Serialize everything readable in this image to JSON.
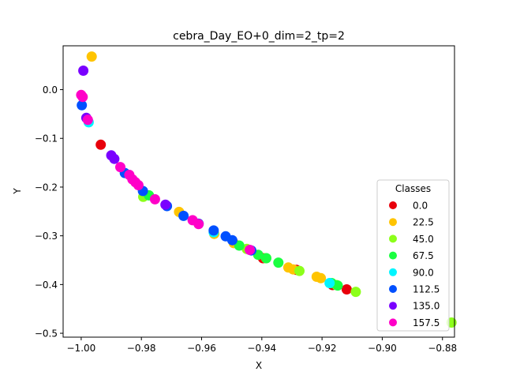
{
  "chart_data": {
    "type": "scatter",
    "title": "cebra_Day_EO+0_dim=2_tp=2",
    "xlabel": "X",
    "ylabel": "Y",
    "xlim": [
      -1.006,
      -0.876
    ],
    "ylim": [
      -0.508,
      0.09
    ],
    "xticks": [
      -1.0,
      -0.98,
      -0.96,
      -0.94,
      -0.92,
      -0.9,
      -0.88
    ],
    "xtick_labels": [
      "−1.00",
      "−0.98",
      "−0.96",
      "−0.94",
      "−0.92",
      "−0.90",
      "−0.88"
    ],
    "yticks": [
      0.0,
      -0.1,
      -0.2,
      -0.3,
      -0.4,
      -0.5
    ],
    "ytick_labels": [
      "0.0",
      "−0.1",
      "−0.2",
      "−0.3",
      "−0.4",
      "−0.5"
    ],
    "grid": false,
    "legend": {
      "title": "Classes",
      "placement": "lower-right"
    },
    "series": [
      {
        "name": "0.0",
        "color": "#e8000b",
        "points": [
          [
            -0.9935,
            -0.113
          ],
          [
            -0.9396,
            -0.346
          ],
          [
            -0.9285,
            -0.37
          ],
          [
            -0.9165,
            -0.401
          ],
          [
            -0.9118,
            -0.41
          ]
        ]
      },
      {
        "name": "22.5",
        "color": "#ffc400",
        "points": [
          [
            -0.9965,
            0.068
          ],
          [
            -0.9675,
            -0.251
          ],
          [
            -0.9558,
            -0.296
          ],
          [
            -0.9493,
            -0.315
          ],
          [
            -0.9312,
            -0.365
          ],
          [
            -0.9296,
            -0.369
          ],
          [
            -0.9218,
            -0.384
          ],
          [
            -0.9204,
            -0.387
          ]
        ]
      },
      {
        "name": "45.0",
        "color": "#8cff1a",
        "points": [
          [
            -0.9794,
            -0.22
          ],
          [
            -0.945,
            -0.327
          ],
          [
            -0.9386,
            -0.346
          ],
          [
            -0.9275,
            -0.372
          ],
          [
            -0.9152,
            -0.401
          ],
          [
            -0.9088,
            -0.415
          ],
          [
            -0.877,
            -0.478
          ]
        ]
      },
      {
        "name": "67.5",
        "color": "#1aff40",
        "points": [
          [
            -0.9775,
            -0.217
          ],
          [
            -0.9475,
            -0.32
          ],
          [
            -0.9412,
            -0.339
          ],
          [
            -0.9385,
            -0.346
          ],
          [
            -0.9345,
            -0.355
          ],
          [
            -0.9168,
            -0.397
          ],
          [
            -0.9148,
            -0.402
          ]
        ]
      },
      {
        "name": "90.0",
        "color": "#00f5ff",
        "points": [
          [
            -0.9975,
            -0.067
          ],
          [
            -0.956,
            -0.293
          ],
          [
            -0.9175,
            -0.397
          ]
        ]
      },
      {
        "name": "112.5",
        "color": "#0050ff",
        "points": [
          [
            -0.9998,
            -0.032
          ],
          [
            -0.9855,
            -0.171
          ],
          [
            -0.9795,
            -0.208
          ],
          [
            -0.9715,
            -0.239
          ],
          [
            -0.966,
            -0.259
          ],
          [
            -0.961,
            -0.275
          ],
          [
            -0.956,
            -0.289
          ],
          [
            -0.952,
            -0.301
          ],
          [
            -0.9498,
            -0.309
          ],
          [
            -0.9435,
            -0.33
          ]
        ]
      },
      {
        "name": "135.0",
        "color": "#7a00ff",
        "points": [
          [
            -0.9993,
            0.039
          ],
          [
            -0.9983,
            -0.058
          ],
          [
            -0.99,
            -0.135
          ],
          [
            -0.989,
            -0.142
          ],
          [
            -0.972,
            -0.236
          ]
        ]
      },
      {
        "name": "157.5",
        "color": "#ff00c8",
        "points": [
          [
            -1.0,
            -0.011
          ],
          [
            -0.9995,
            -0.015
          ],
          [
            -0.9978,
            -0.062
          ],
          [
            -0.987,
            -0.159
          ],
          [
            -0.984,
            -0.175
          ],
          [
            -0.983,
            -0.184
          ],
          [
            -0.982,
            -0.19
          ],
          [
            -0.981,
            -0.196
          ],
          [
            -0.9755,
            -0.225
          ],
          [
            -0.963,
            -0.268
          ],
          [
            -0.961,
            -0.276
          ],
          [
            -0.944,
            -0.329
          ]
        ]
      }
    ]
  }
}
